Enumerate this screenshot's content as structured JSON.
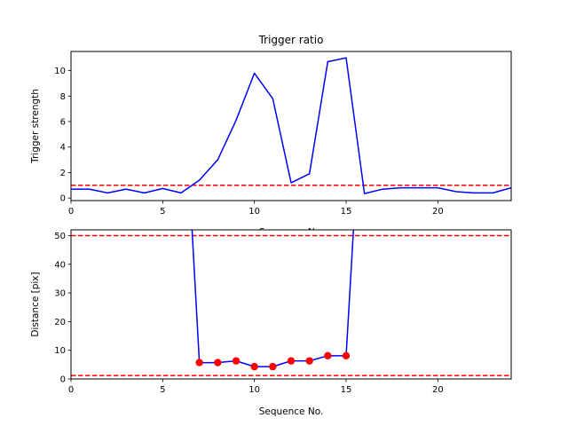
{
  "chart_data": [
    {
      "type": "line",
      "title": "Trigger ratio",
      "xlabel": "Sequence No.",
      "ylabel": "Trigger strength",
      "xlim": [
        0,
        24
      ],
      "ylim": [
        -0.2,
        11.5
      ],
      "xticks": [
        "0",
        "5",
        "10",
        "15",
        "20"
      ],
      "yticks": [
        "0",
        "2",
        "4",
        "6",
        "8",
        "10"
      ],
      "grid": false,
      "series": [
        {
          "color": "#0000ff",
          "style": "solid",
          "x": [
            0,
            1,
            2,
            3,
            4,
            5,
            6,
            7,
            8,
            9,
            10,
            11,
            12,
            13,
            14,
            15,
            16,
            17,
            18,
            19,
            20,
            21,
            22,
            23,
            24
          ],
          "y": [
            0.7,
            0.7,
            0.4,
            0.7,
            0.4,
            0.75,
            0.4,
            1.4,
            3.0,
            6.1,
            9.8,
            7.8,
            1.2,
            1.9,
            10.7,
            11.0,
            0.35,
            0.7,
            0.8,
            0.8,
            0.8,
            0.5,
            0.4,
            0.4,
            0.8
          ]
        }
      ],
      "hlines": [
        {
          "y": 1.0,
          "color": "#ff0000",
          "style": "dashed"
        }
      ]
    },
    {
      "type": "line",
      "title": "",
      "xlabel": "Sequence No.",
      "ylabel": "Distance [pix]",
      "xlim": [
        0,
        24
      ],
      "ylim": [
        0,
        52
      ],
      "xticks": [
        "0",
        "5",
        "10",
        "15",
        "20"
      ],
      "yticks": [
        "0",
        "10",
        "20",
        "30",
        "40",
        "50"
      ],
      "grid": false,
      "series": [
        {
          "color": "#0000ff",
          "style": "solid",
          "x": [
            6.6,
            7,
            8,
            9,
            10,
            11,
            12,
            13,
            14,
            15,
            15.4
          ],
          "y": [
            52,
            5.7,
            5.7,
            6.3,
            4.3,
            4.3,
            6.3,
            6.3,
            8.1,
            8.1,
            52
          ]
        }
      ],
      "markers": {
        "color": "#ff0000",
        "x": [
          7,
          8,
          9,
          10,
          11,
          12,
          13,
          14,
          15
        ],
        "y": [
          5.7,
          5.7,
          6.3,
          4.3,
          4.3,
          6.3,
          6.3,
          8.1,
          8.1
        ]
      },
      "hlines": [
        {
          "y": 50,
          "color": "#ff0000",
          "style": "dashed"
        },
        {
          "y": 1.2,
          "color": "#ff0000",
          "style": "dashed"
        }
      ]
    }
  ]
}
